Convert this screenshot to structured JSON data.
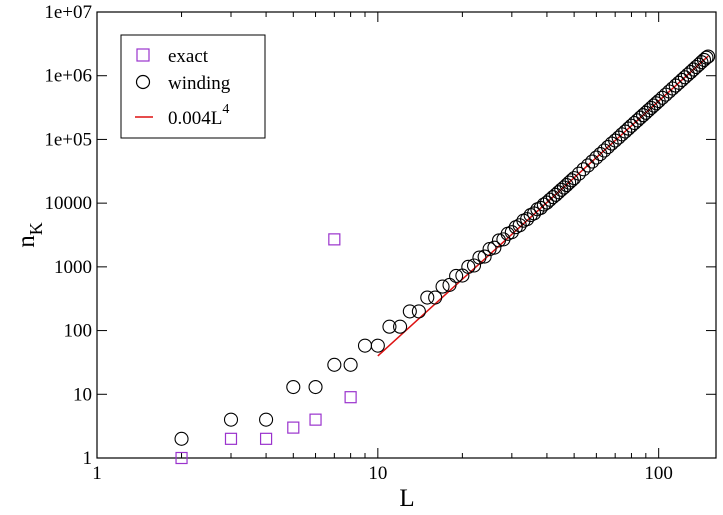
{
  "chart_data": {
    "type": "scatter",
    "title": "",
    "xlabel": "L",
    "ylabel": "n_K",
    "ylabel_main": "n",
    "ylabel_sub": "K",
    "xscale": "log",
    "yscale": "log",
    "xlim": [
      1,
      160
    ],
    "ylim": [
      1,
      10000000
    ],
    "grid": false,
    "legend_position": "top-left",
    "x_ticks": [
      {
        "value": 1,
        "label": "1"
      },
      {
        "value": 10,
        "label": "10"
      },
      {
        "value": 100,
        "label": "100"
      }
    ],
    "y_ticks": [
      {
        "value": 1,
        "label": "1"
      },
      {
        "value": 10,
        "label": "10"
      },
      {
        "value": 100,
        "label": "100"
      },
      {
        "value": 1000,
        "label": "1000"
      },
      {
        "value": 10000,
        "label": "10000"
      },
      {
        "value": 100000,
        "label": "1e+05"
      },
      {
        "value": 1000000,
        "label": "1e+06"
      },
      {
        "value": 10000000,
        "label": "1e+07"
      }
    ],
    "series": [
      {
        "name": "exact",
        "marker": "square",
        "color": "#9a32cd",
        "points": [
          [
            2,
            1
          ],
          [
            3,
            2
          ],
          [
            4,
            2
          ],
          [
            5,
            3
          ],
          [
            6,
            4
          ],
          [
            7,
            2700
          ],
          [
            8,
            9
          ]
        ]
      },
      {
        "name": "winding",
        "marker": "circle",
        "color": "#000000",
        "points": [
          [
            2,
            2
          ],
          [
            3,
            4
          ],
          [
            4,
            4
          ],
          [
            5,
            13
          ],
          [
            6,
            13
          ],
          [
            7,
            29
          ],
          [
            8,
            29
          ],
          [
            9,
            58
          ],
          [
            10,
            58
          ],
          [
            11,
            115
          ],
          [
            12,
            115
          ],
          [
            13,
            200
          ],
          [
            14,
            200
          ],
          [
            15,
            330
          ],
          [
            16,
            330
          ],
          [
            17,
            490
          ],
          [
            18,
            520
          ],
          [
            19,
            720
          ],
          [
            20,
            730
          ],
          [
            21,
            1000
          ],
          [
            22,
            1050
          ],
          [
            23,
            1400
          ],
          [
            24,
            1450
          ],
          [
            25,
            1900
          ],
          [
            26,
            2000
          ],
          [
            27,
            2600
          ],
          [
            28,
            2700
          ],
          [
            29,
            3300
          ],
          [
            30,
            3500
          ],
          [
            31,
            4200
          ],
          [
            32,
            4500
          ],
          [
            33,
            5300
          ],
          [
            34,
            5600
          ],
          [
            35,
            6500
          ],
          [
            36,
            6900
          ],
          [
            37,
            8000
          ],
          [
            38,
            8400
          ],
          [
            39,
            9500
          ],
          [
            40,
            10200
          ],
          [
            41,
            11300
          ],
          [
            42,
            12400
          ],
          [
            43,
            13500
          ],
          [
            44,
            14800
          ],
          [
            45,
            16200
          ],
          [
            46,
            17600
          ],
          [
            47,
            19200
          ],
          [
            48,
            21000
          ],
          [
            49,
            22800
          ],
          [
            50,
            24700
          ],
          [
            52,
            29000
          ],
          [
            54,
            34000
          ],
          [
            56,
            39000
          ],
          [
            58,
            45000
          ],
          [
            60,
            52000
          ],
          [
            62,
            59000
          ],
          [
            64,
            67000
          ],
          [
            66,
            76000
          ],
          [
            68,
            86000
          ],
          [
            70,
            96000
          ],
          [
            72,
            107000
          ],
          [
            74,
            120000
          ],
          [
            76,
            133000
          ],
          [
            78,
            148000
          ],
          [
            80,
            164000
          ],
          [
            82,
            181000
          ],
          [
            84,
            199000
          ],
          [
            86,
            219000
          ],
          [
            88,
            240000
          ],
          [
            90,
            262000
          ],
          [
            92,
            287000
          ],
          [
            94,
            312000
          ],
          [
            96,
            340000
          ],
          [
            98,
            369000
          ],
          [
            100,
            400000
          ],
          [
            103,
            450000
          ],
          [
            106,
            505000
          ],
          [
            109,
            565000
          ],
          [
            112,
            630000
          ],
          [
            115,
            700000
          ],
          [
            118,
            775000
          ],
          [
            121,
            857000
          ],
          [
            124,
            945000
          ],
          [
            127,
            1040000
          ],
          [
            130,
            1140000
          ],
          [
            133,
            1250000
          ],
          [
            136,
            1370000
          ],
          [
            139,
            1490000
          ],
          [
            142,
            1630000
          ],
          [
            145,
            1770000
          ],
          [
            148,
            1920000
          ],
          [
            150,
            2000000
          ]
        ]
      },
      {
        "name": "0.004L",
        "name_sup": "4",
        "marker": "line",
        "color": "#dd1111",
        "coefficient": 0.004,
        "exponent": 4,
        "x_range": [
          10,
          150
        ]
      }
    ]
  }
}
